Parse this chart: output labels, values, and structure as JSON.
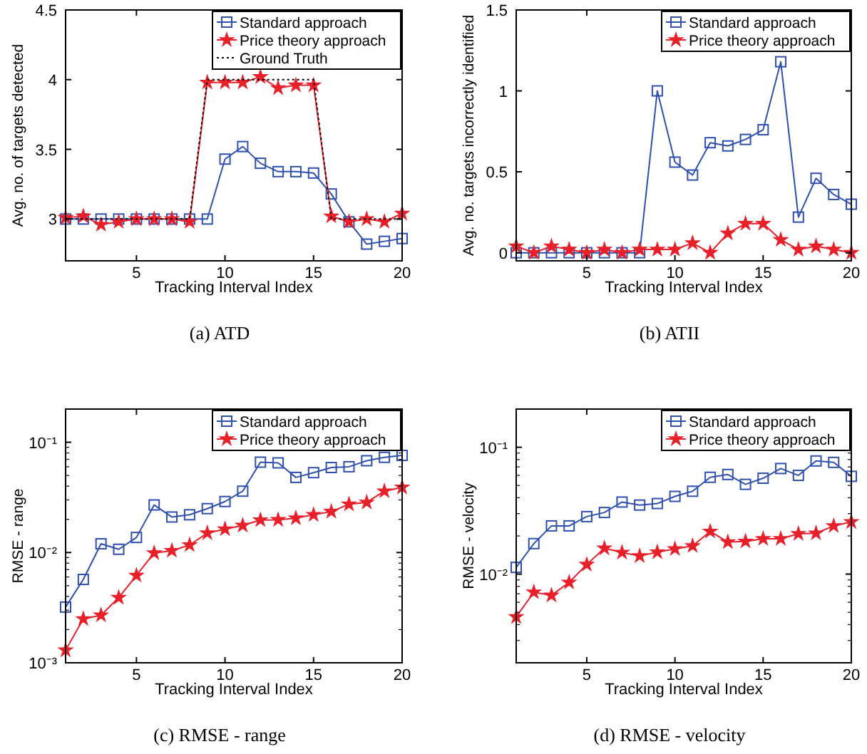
{
  "chart_data": [
    {
      "type": "line",
      "title": "(a)  ATD",
      "xlabel": "Tracking Interval Index",
      "ylabel": "Avg. no. of targets detected",
      "xlim": [
        1,
        20
      ],
      "xticks": [
        5,
        10,
        15,
        20
      ],
      "ylim": [
        2.7,
        4.5
      ],
      "yticks": [
        3,
        3.5,
        4,
        4.5
      ],
      "grid": false,
      "legend": "top right",
      "x": [
        1,
        2,
        3,
        4,
        5,
        6,
        7,
        8,
        9,
        10,
        11,
        12,
        13,
        14,
        15,
        16,
        17,
        18,
        19,
        20
      ],
      "series": [
        {
          "name": "Standard approach",
          "color": "#3050b0",
          "marker": "square",
          "line_style": "solid",
          "values": [
            3,
            3,
            3,
            3,
            3,
            3,
            3,
            3,
            3,
            3.43,
            3.52,
            3.4,
            3.34,
            3.34,
            3.33,
            3.18,
            2.98,
            2.82,
            2.84,
            2.86
          ]
        },
        {
          "name": "Price theory approach",
          "color": "#e8202a",
          "marker": "star",
          "line_style": "solid",
          "values": [
            3.01,
            3.02,
            2.96,
            2.98,
            3,
            3,
            3,
            2.98,
            3.98,
            3.98,
            3.98,
            4.02,
            3.94,
            3.96,
            3.96,
            3.02,
            2.98,
            3,
            2.98,
            3.04
          ]
        },
        {
          "name": "Ground Truth",
          "color": "#000000",
          "marker": "none",
          "line_style": "dotted",
          "values": [
            3,
            3,
            3,
            3,
            3,
            3,
            3,
            3,
            4,
            4,
            4,
            4,
            4,
            4,
            4,
            3,
            3,
            3,
            3,
            3
          ]
        }
      ]
    },
    {
      "type": "line",
      "title": "(b)  ATII",
      "xlabel": "Tracking Interval Index",
      "ylabel": "Avg. no. targets incorrectly identified",
      "xlim": [
        1,
        20
      ],
      "xticks": [
        5,
        10,
        15,
        20
      ],
      "ylim": [
        -0.05,
        1.5
      ],
      "yticks": [
        0,
        0.5,
        1,
        1.5
      ],
      "grid": false,
      "legend": "top right",
      "x": [
        1,
        2,
        3,
        4,
        5,
        6,
        7,
        8,
        9,
        10,
        11,
        12,
        13,
        14,
        15,
        16,
        17,
        18,
        19,
        20
      ],
      "series": [
        {
          "name": "Standard approach",
          "color": "#3050b0",
          "marker": "square",
          "line_style": "solid",
          "values": [
            0,
            0,
            0,
            0,
            0,
            0,
            0,
            0,
            1.0,
            0.56,
            0.48,
            0.68,
            0.66,
            0.7,
            0.76,
            1.18,
            0.22,
            0.46,
            0.36,
            0.3
          ]
        },
        {
          "name": "Price theory approach",
          "color": "#e8202a",
          "marker": "star",
          "line_style": "solid",
          "values": [
            0.04,
            0,
            0.04,
            0.02,
            0,
            0.02,
            0,
            0.02,
            0.02,
            0.02,
            0.06,
            0,
            0.12,
            0.18,
            0.18,
            0.08,
            0.02,
            0.04,
            0.02,
            0
          ]
        }
      ]
    },
    {
      "type": "line",
      "title": "(c)  RMSE - range",
      "xlabel": "Tracking Interval Index",
      "ylabel": "RMSE - range",
      "log": "y",
      "xlim": [
        1,
        20
      ],
      "xticks": [
        5,
        10,
        15,
        20
      ],
      "ylim": [
        0.001,
        0.2
      ],
      "yticks": [
        {
          "value": 0.001,
          "label": "10⁻³"
        },
        {
          "value": 0.01,
          "label": "10⁻²"
        },
        {
          "value": 0.1,
          "label": "10⁻¹"
        }
      ],
      "grid": false,
      "legend": "top right",
      "x": [
        1,
        2,
        3,
        4,
        5,
        6,
        7,
        8,
        9,
        10,
        11,
        12,
        13,
        14,
        15,
        16,
        17,
        18,
        19,
        20
      ],
      "series": [
        {
          "name": "Standard approach",
          "color": "#3050b0",
          "marker": "square",
          "line_style": "solid",
          "values": [
            0.0032,
            0.0057,
            0.012,
            0.0107,
            0.0137,
            0.027,
            0.021,
            0.022,
            0.025,
            0.029,
            0.036,
            0.066,
            0.065,
            0.048,
            0.053,
            0.059,
            0.06,
            0.068,
            0.073,
            0.076
          ]
        },
        {
          "name": "Price theory approach",
          "color": "#e8202a",
          "marker": "star",
          "line_style": "solid",
          "values": [
            0.0013,
            0.0025,
            0.0027,
            0.0039,
            0.0062,
            0.0099,
            0.0104,
            0.0117,
            0.015,
            0.0163,
            0.0176,
            0.0197,
            0.0198,
            0.0205,
            0.022,
            0.0235,
            0.0274,
            0.0285,
            0.036,
            0.039
          ]
        }
      ]
    },
    {
      "type": "line",
      "title": "(d)  RMSE - velocity",
      "xlabel": "Tracking Interval Index",
      "ylabel": "RMSE - velocity",
      "log": "y",
      "xlim": [
        1,
        20
      ],
      "xticks": [
        5,
        10,
        15,
        20
      ],
      "ylim": [
        0.002,
        0.2
      ],
      "yticks": [
        {
          "value": 0.01,
          "label": "10⁻²"
        },
        {
          "value": 0.1,
          "label": "10⁻¹"
        }
      ],
      "grid": false,
      "legend": "top right",
      "x": [
        1,
        2,
        3,
        4,
        5,
        6,
        7,
        8,
        9,
        10,
        11,
        12,
        13,
        14,
        15,
        16,
        17,
        18,
        19,
        20
      ],
      "series": [
        {
          "name": "Standard approach",
          "color": "#3050b0",
          "marker": "square",
          "line_style": "solid",
          "values": [
            0.0113,
            0.0174,
            0.024,
            0.024,
            0.0284,
            0.0306,
            0.037,
            0.035,
            0.036,
            0.041,
            0.045,
            0.058,
            0.061,
            0.051,
            0.057,
            0.068,
            0.06,
            0.078,
            0.076,
            0.059
          ]
        },
        {
          "name": "Price theory approach",
          "color": "#e8202a",
          "marker": "star",
          "line_style": "solid",
          "values": [
            0.0046,
            0.0072,
            0.0068,
            0.0086,
            0.0119,
            0.016,
            0.0148,
            0.0139,
            0.0149,
            0.0158,
            0.0167,
            0.0217,
            0.0179,
            0.0181,
            0.019,
            0.019,
            0.0208,
            0.021,
            0.024,
            0.0258
          ]
        }
      ]
    }
  ]
}
